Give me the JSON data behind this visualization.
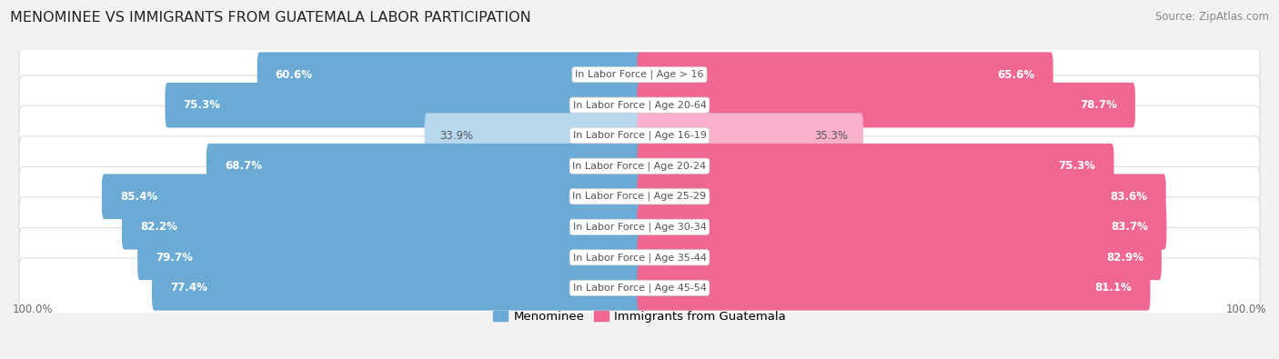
{
  "title": "MENOMINEE VS IMMIGRANTS FROM GUATEMALA LABOR PARTICIPATION",
  "source": "Source: ZipAtlas.com",
  "categories": [
    "In Labor Force | Age > 16",
    "In Labor Force | Age 20-64",
    "In Labor Force | Age 16-19",
    "In Labor Force | Age 20-24",
    "In Labor Force | Age 25-29",
    "In Labor Force | Age 30-34",
    "In Labor Force | Age 35-44",
    "In Labor Force | Age 45-54"
  ],
  "menominee_values": [
    60.6,
    75.3,
    33.9,
    68.7,
    85.4,
    82.2,
    79.7,
    77.4
  ],
  "guatemala_values": [
    65.6,
    78.7,
    35.3,
    75.3,
    83.6,
    83.7,
    82.9,
    81.1
  ],
  "menominee_color": "#6aaad4",
  "menominee_color_light": "#b8d8ee",
  "guatemala_color": "#f06892",
  "guatemala_color_light": "#f8b0cc",
  "bg_color": "#f2f2f2",
  "bar_bg_color": "#ffffff",
  "bar_border_color": "#dddddd",
  "max_val": 100.0,
  "legend_menominee": "Menominee",
  "legend_guatemala": "Immigrants from Guatemala",
  "title_fontsize": 11.5,
  "source_fontsize": 8.5,
  "bar_label_fontsize": 8.5,
  "category_fontsize": 8.0,
  "legend_fontsize": 9.5,
  "center_label_color": "#555555",
  "axis_label_color": "#666666",
  "axis_label_fontsize": 8.5
}
